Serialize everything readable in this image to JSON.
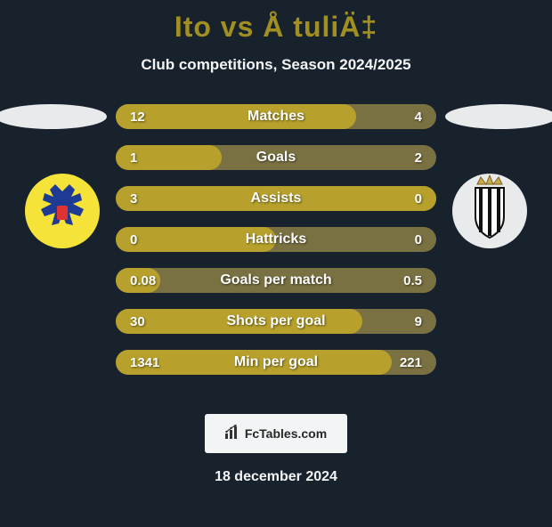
{
  "title": "Ito vs Å tuliÄ‡",
  "subtitle": "Club competitions, Season 2024/2025",
  "date": "18 december 2024",
  "brand": "FcTables.com",
  "colors": {
    "barFill": "#b7a12c",
    "barEmpty": "#7a7142",
    "titleAccent": "#a28f21",
    "text": "#ffffff",
    "background": "#18222c",
    "panel": "#f3f4f5"
  },
  "leftBadge": {
    "name": "stvv-crest",
    "ringColor": "#f6e33a",
    "emblemColor": "#1f3a93"
  },
  "rightBadge": {
    "name": "charleroi-crest",
    "ringColor": "#e9eaec",
    "shieldColor": "#ffffff",
    "stripeColor": "#111111"
  },
  "stats": [
    {
      "label": "Matches",
      "leftVal": "12",
      "rightVal": "4",
      "fillPct": 75
    },
    {
      "label": "Goals",
      "leftVal": "1",
      "rightVal": "2",
      "fillPct": 33
    },
    {
      "label": "Assists",
      "leftVal": "3",
      "rightVal": "0",
      "fillPct": 100
    },
    {
      "label": "Hattricks",
      "leftVal": "0",
      "rightVal": "0",
      "fillPct": 50
    },
    {
      "label": "Goals per match",
      "leftVal": "0.08",
      "rightVal": "0.5",
      "fillPct": 14
    },
    {
      "label": "Shots per goal",
      "leftVal": "30",
      "rightVal": "9",
      "fillPct": 77
    },
    {
      "label": "Min per goal",
      "leftVal": "1341",
      "rightVal": "221",
      "fillPct": 86
    }
  ]
}
